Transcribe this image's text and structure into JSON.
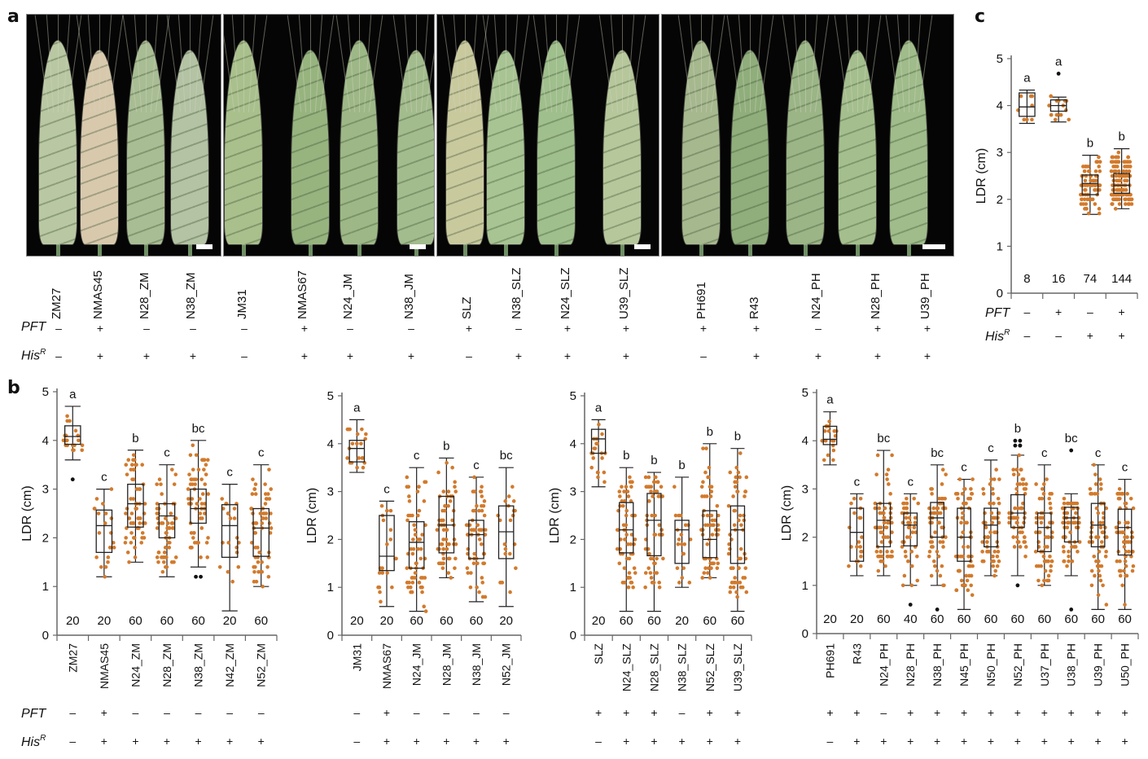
{
  "panel_letters": {
    "a": "a",
    "b": "b",
    "c": "c"
  },
  "row_labels": {
    "pft": "PFT",
    "his": "His",
    "his_sup": "R"
  },
  "colors": {
    "dot": "#d27a2c",
    "box": "#222222",
    "axis": "#666666",
    "outlier": "#111111"
  },
  "panel_a": {
    "groups": [
      {
        "lines": [
          "ZM27",
          "NMAS45",
          "N28_ZM",
          "N38_ZM"
        ],
        "pft": [
          "-",
          "+",
          "-",
          "-"
        ],
        "his": [
          "-",
          "+",
          "+",
          "+"
        ]
      },
      {
        "lines": [
          "JM31",
          "NMAS67",
          "N24_JM",
          "N38_JM"
        ],
        "pft": [
          "-",
          "+",
          "-",
          "-"
        ],
        "his": [
          "-",
          "+",
          "+",
          "+"
        ]
      },
      {
        "lines": [
          "SLZ",
          "N38_SLZ",
          "N24_SLZ",
          "U39_SLZ"
        ],
        "pft": [
          "+",
          "-",
          "+",
          "+"
        ],
        "his": [
          "-",
          "+",
          "+",
          "+"
        ]
      },
      {
        "lines": [
          "PH691",
          "R43",
          "N24_PH",
          "N28_PH",
          "U39_PH"
        ],
        "pft": [
          "+",
          "+",
          "-",
          "+",
          "+"
        ],
        "his": [
          "-",
          "+",
          "+",
          "+",
          "+"
        ]
      }
    ]
  },
  "chart_data": [
    {
      "id": "b1",
      "type": "box",
      "ylabel": "LDR (cm)",
      "ylim": [
        0,
        5
      ],
      "yticks": [
        0,
        1,
        2,
        3,
        4,
        5
      ],
      "categories": [
        "ZM27",
        "NMAS45",
        "N24_ZM",
        "N28_ZM",
        "N38_ZM",
        "N42_ZM",
        "N52_ZM"
      ],
      "pft": [
        "-",
        "+",
        "-",
        "-",
        "-",
        "-",
        "-"
      ],
      "his": [
        "-",
        "+",
        "+",
        "+",
        "+",
        "+",
        "+"
      ],
      "n": [
        "20",
        "20",
        "60",
        "60",
        "60",
        "20",
        "60"
      ],
      "letters": [
        "a",
        "c",
        "b",
        "c",
        "bc",
        "c",
        "c"
      ],
      "stats": [
        {
          "min": 3.6,
          "q1": 3.92,
          "median": 4.08,
          "q3": 4.3,
          "max": 4.7,
          "outliers": [
            3.2
          ]
        },
        {
          "min": 1.2,
          "q1": 1.7,
          "median": 2.25,
          "q3": 2.57,
          "max": 3.0,
          "outliers": []
        },
        {
          "min": 1.5,
          "q1": 2.22,
          "median": 2.7,
          "q3": 3.1,
          "max": 3.8,
          "outliers": []
        },
        {
          "min": 1.2,
          "q1": 2.0,
          "median": 2.45,
          "q3": 2.7,
          "max": 3.5,
          "outliers": []
        },
        {
          "min": 1.4,
          "q1": 2.3,
          "median": 2.6,
          "q3": 3.0,
          "max": 4.0,
          "outliers": [
            1.2,
            1.2
          ]
        },
        {
          "min": 0.5,
          "q1": 1.6,
          "median": 2.25,
          "q3": 2.68,
          "max": 3.1,
          "outliers": []
        },
        {
          "min": 1.0,
          "q1": 1.62,
          "median": 2.2,
          "q3": 2.6,
          "max": 3.5,
          "outliers": []
        }
      ]
    },
    {
      "id": "b2",
      "type": "box",
      "ylabel": "LDR (cm)",
      "ylim": [
        0,
        5
      ],
      "yticks": [
        0,
        1,
        2,
        3,
        4,
        5
      ],
      "categories": [
        "JM31",
        "NMAS67",
        "N24_JM",
        "N28_JM",
        "N38_JM",
        "N52_JM"
      ],
      "pft": [
        "-",
        "+",
        "-",
        "-",
        "-",
        "-"
      ],
      "his": [
        "-",
        "+",
        "+",
        "+",
        "+",
        "+"
      ],
      "n": [
        "20",
        "20",
        "60",
        "60",
        "60",
        "20"
      ],
      "letters": [
        "a",
        "c",
        "c",
        "b",
        "c",
        "bc"
      ],
      "stats": [
        {
          "min": 3.4,
          "q1": 3.62,
          "median": 3.9,
          "q3": 4.07,
          "max": 4.5,
          "outliers": []
        },
        {
          "min": 0.6,
          "q1": 1.35,
          "median": 1.65,
          "q3": 2.5,
          "max": 2.8,
          "outliers": []
        },
        {
          "min": 0.5,
          "q1": 1.4,
          "median": 1.94,
          "q3": 2.37,
          "max": 3.5,
          "outliers": []
        },
        {
          "min": 1.2,
          "q1": 1.72,
          "median": 2.3,
          "q3": 2.9,
          "max": 3.7,
          "outliers": []
        },
        {
          "min": 0.7,
          "q1": 1.6,
          "median": 2.1,
          "q3": 2.4,
          "max": 3.3,
          "outliers": []
        },
        {
          "min": 0.6,
          "q1": 1.6,
          "median": 2.16,
          "q3": 2.7,
          "max": 3.5,
          "outliers": []
        }
      ]
    },
    {
      "id": "b3",
      "type": "box",
      "ylabel": "LDR (cm)",
      "ylim": [
        0,
        5
      ],
      "yticks": [
        0,
        1,
        2,
        3,
        4,
        5
      ],
      "categories": [
        "SLZ",
        "N24_SLZ",
        "N28_SLZ",
        "N38_SLZ",
        "N52_SLZ",
        "U39_SLZ"
      ],
      "pft": [
        "+",
        "+",
        "+",
        "-",
        "+",
        "+"
      ],
      "his": [
        "-",
        "+",
        "+",
        "+",
        "+",
        "+"
      ],
      "n": [
        "20",
        "60",
        "60",
        "20",
        "60",
        "60"
      ],
      "letters": [
        "a",
        "b",
        "b",
        "b",
        "b",
        "b"
      ],
      "stats": [
        {
          "min": 3.1,
          "q1": 3.8,
          "median": 4.1,
          "q3": 4.3,
          "max": 4.5,
          "outliers": []
        },
        {
          "min": 0.5,
          "q1": 1.72,
          "median": 2.2,
          "q3": 2.77,
          "max": 3.5,
          "outliers": []
        },
        {
          "min": 0.5,
          "q1": 1.66,
          "median": 2.4,
          "q3": 2.96,
          "max": 3.4,
          "outliers": []
        },
        {
          "min": 1.0,
          "q1": 1.5,
          "median": 2.2,
          "q3": 2.4,
          "max": 3.3,
          "outliers": []
        },
        {
          "min": 1.2,
          "q1": 1.62,
          "median": 2.0,
          "q3": 2.6,
          "max": 4.0,
          "outliers": []
        },
        {
          "min": 0.5,
          "q1": 1.5,
          "median": 2.2,
          "q3": 2.7,
          "max": 3.9,
          "outliers": []
        }
      ]
    },
    {
      "id": "b4",
      "type": "box",
      "ylabel": "LDR (cm)",
      "ylim": [
        0,
        5
      ],
      "yticks": [
        0,
        1,
        2,
        3,
        4,
        5
      ],
      "categories": [
        "PH691",
        "R43",
        "N24_PH",
        "N28_PH",
        "N38_PH",
        "N45_PH",
        "N50_PH",
        "N52_PH",
        "U37_PH",
        "U38_PH",
        "U39_PH",
        "U50_PH"
      ],
      "pft": [
        "+",
        "+",
        "-",
        "+",
        "+",
        "+",
        "+",
        "+",
        "+",
        "+",
        "+",
        "+"
      ],
      "his": [
        "-",
        "+",
        "+",
        "+",
        "+",
        "+",
        "+",
        "+",
        "+",
        "+",
        "+",
        "+"
      ],
      "n": [
        "20",
        "20",
        "60",
        "40",
        "60",
        "60",
        "60",
        "60",
        "60",
        "60",
        "60",
        "60"
      ],
      "letters": [
        "a",
        "c",
        "bc",
        "c",
        "bc",
        "c",
        "c",
        "b",
        "c",
        "bc",
        "c",
        "c"
      ],
      "stats": [
        {
          "min": 3.5,
          "q1": 3.92,
          "median": 4.03,
          "q3": 4.3,
          "max": 4.6,
          "outliers": []
        },
        {
          "min": 1.2,
          "q1": 1.5,
          "median": 2.1,
          "q3": 2.6,
          "max": 2.9,
          "outliers": []
        },
        {
          "min": 1.2,
          "q1": 1.8,
          "median": 2.35,
          "q3": 2.7,
          "max": 3.8,
          "outliers": []
        },
        {
          "min": 1.0,
          "q1": 1.82,
          "median": 2.25,
          "q3": 2.5,
          "max": 2.9,
          "outliers": [
            0.6
          ]
        },
        {
          "min": 1.0,
          "q1": 2.0,
          "median": 2.4,
          "q3": 2.72,
          "max": 3.5,
          "outliers": [
            0.5
          ]
        },
        {
          "min": 0.5,
          "q1": 1.5,
          "median": 2.0,
          "q3": 2.6,
          "max": 3.2,
          "outliers": []
        },
        {
          "min": 1.2,
          "q1": 1.8,
          "median": 2.25,
          "q3": 2.6,
          "max": 3.6,
          "outliers": []
        },
        {
          "min": 1.2,
          "q1": 2.2,
          "median": 2.5,
          "q3": 2.88,
          "max": 3.7,
          "outliers": [
            1.0,
            3.9,
            3.9,
            3.9,
            4.0,
            4.0
          ]
        },
        {
          "min": 1.0,
          "q1": 1.7,
          "median": 2.2,
          "q3": 2.5,
          "max": 3.5,
          "outliers": []
        },
        {
          "min": 1.2,
          "q1": 1.9,
          "median": 2.4,
          "q3": 2.62,
          "max": 2.9,
          "outliers": [
            0.5,
            3.8
          ]
        },
        {
          "min": 0.5,
          "q1": 1.8,
          "median": 2.25,
          "q3": 2.7,
          "max": 3.5,
          "outliers": []
        },
        {
          "min": 0.5,
          "q1": 1.63,
          "median": 2.2,
          "q3": 2.58,
          "max": 3.2,
          "outliers": []
        }
      ]
    },
    {
      "id": "c",
      "type": "box",
      "ylabel": "LDR (cm)",
      "ylim": [
        0,
        5
      ],
      "yticks": [
        0,
        1,
        2,
        3,
        4,
        5
      ],
      "categories": [
        "",
        "",
        "",
        ""
      ],
      "pft": [
        "-",
        "+",
        "-",
        "+"
      ],
      "his": [
        "-",
        "-",
        "+",
        "+"
      ],
      "n": [
        "8",
        "16",
        "74",
        "144"
      ],
      "letters": [
        "a",
        "a",
        "b",
        "b"
      ],
      "stats": [
        {
          "min": 3.62,
          "q1": 3.77,
          "median": 3.97,
          "q3": 4.27,
          "max": 4.33,
          "outliers": []
        },
        {
          "min": 3.65,
          "q1": 3.88,
          "median": 4.0,
          "q3": 4.12,
          "max": 4.18,
          "outliers": [
            4.68
          ]
        },
        {
          "min": 1.68,
          "q1": 2.1,
          "median": 2.34,
          "q3": 2.52,
          "max": 2.94,
          "outliers": []
        },
        {
          "min": 1.8,
          "q1": 2.13,
          "median": 2.3,
          "q3": 2.55,
          "max": 3.08,
          "outliers": []
        }
      ]
    }
  ]
}
